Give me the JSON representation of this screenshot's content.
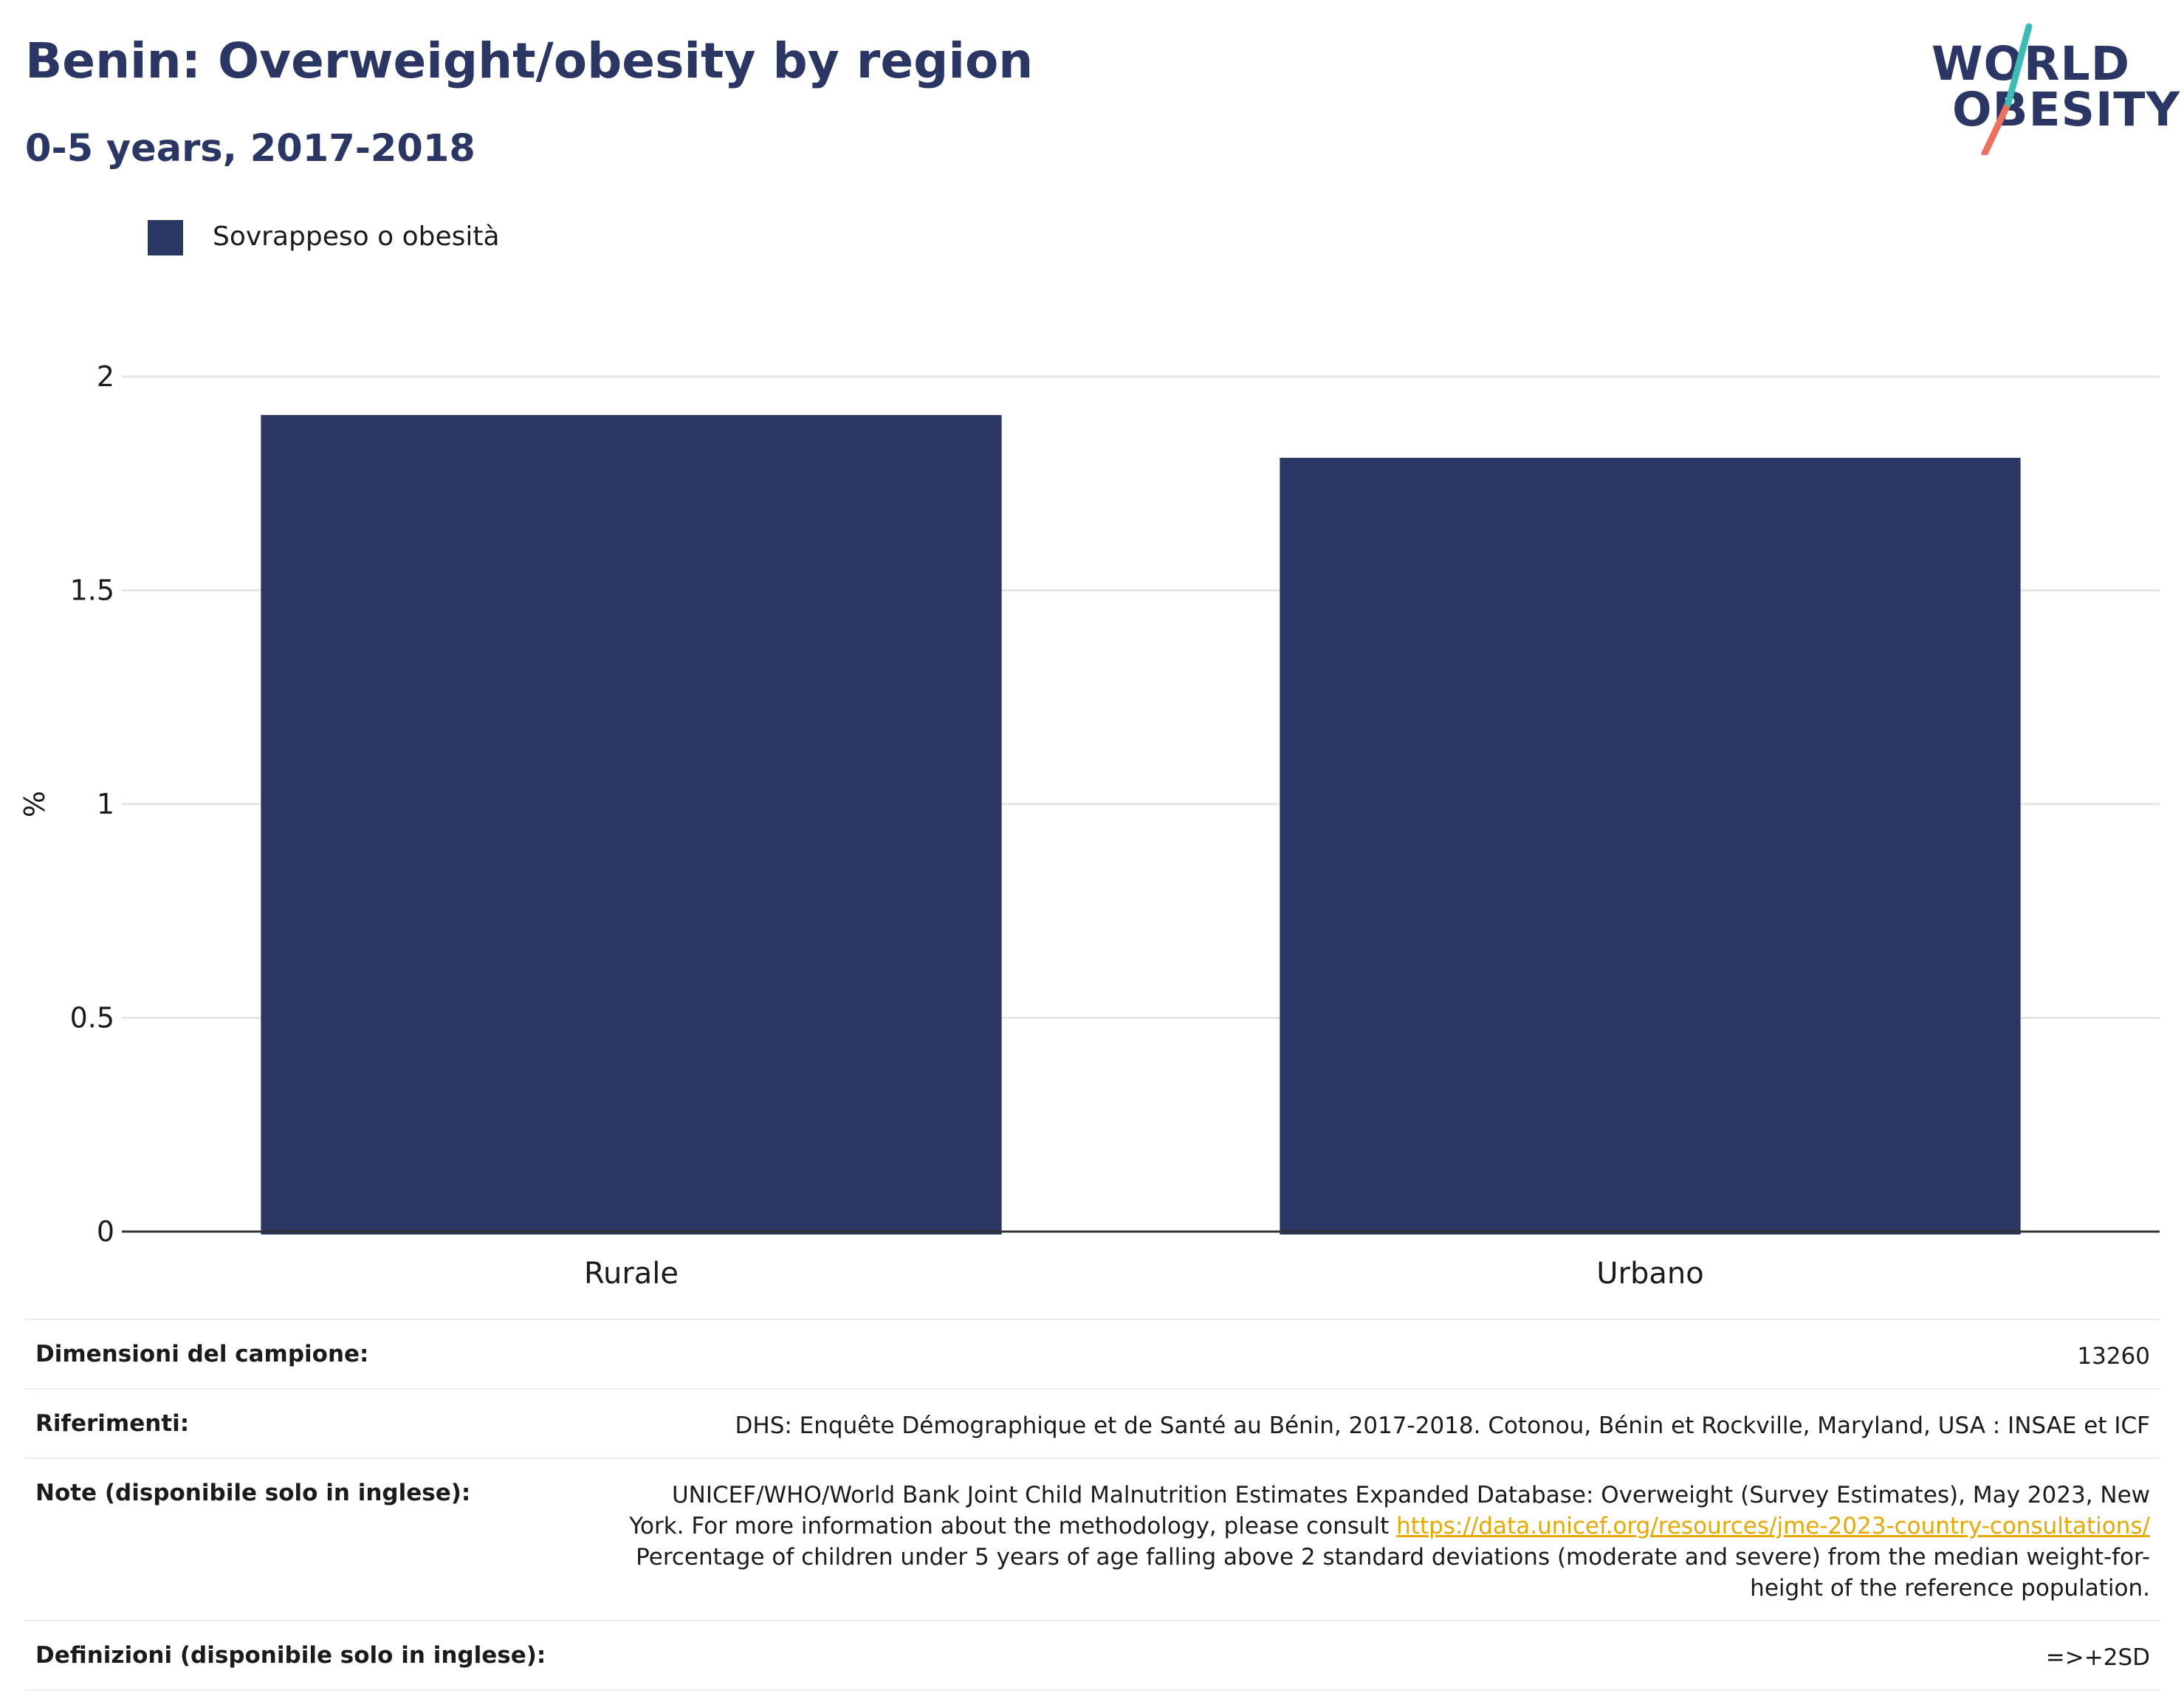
{
  "title": "Benin: Overweight/obesity by region",
  "subtitle": "0-5 years, 2017-2018",
  "logo": {
    "line1": "WORLD",
    "line2": "OBESITY",
    "colors": {
      "navy": "#2a3663",
      "teal": "#3cbcb4",
      "coral": "#ef6f5f"
    }
  },
  "legend": {
    "label": "Sovrappeso o obesità",
    "color": "#2a3663"
  },
  "chart_data": {
    "type": "bar",
    "categories": [
      "Rurale",
      "Urbano"
    ],
    "series": [
      {
        "name": "Sovrappeso o obesità",
        "values": [
          1.91,
          1.81
        ],
        "color": "#2a3663"
      }
    ],
    "ylabel": "%",
    "xlabel": "",
    "ylim": [
      0,
      2
    ],
    "yticks": [
      0,
      0.5,
      1,
      1.5,
      2
    ],
    "ytick_labels": [
      "0",
      "0.5",
      "1",
      "1.5",
      "2"
    ],
    "grid": true,
    "legend_position": "top-left"
  },
  "info": {
    "sample_size": {
      "label": "Dimensioni del campione:",
      "value": "13260"
    },
    "references": {
      "label": "Riferimenti:",
      "value": "DHS: Enquête Démographique et de Santé au Bénin, 2017-2018. Cotonou, Bénin et Rockville, Maryland, USA : INSAE et ICF"
    },
    "notes": {
      "label": "Note (disponibile solo in inglese):",
      "text_before": "UNICEF/WHO/World Bank Joint Child Malnutrition Estimates Expanded Database: Overweight (Survey Estimates), May 2023, New York. For more information about the methodology, please consult ",
      "link": "https://data.unicef.org/resources/jme-2023-country-consultations/",
      "text_after": " Percentage of children under 5 years of age falling above 2 standard deviations (moderate and severe) from the median weight-for-height of the reference population."
    },
    "definitions": {
      "label": "Definizioni (disponibile solo in inglese):",
      "value": "=>+2SD"
    }
  }
}
